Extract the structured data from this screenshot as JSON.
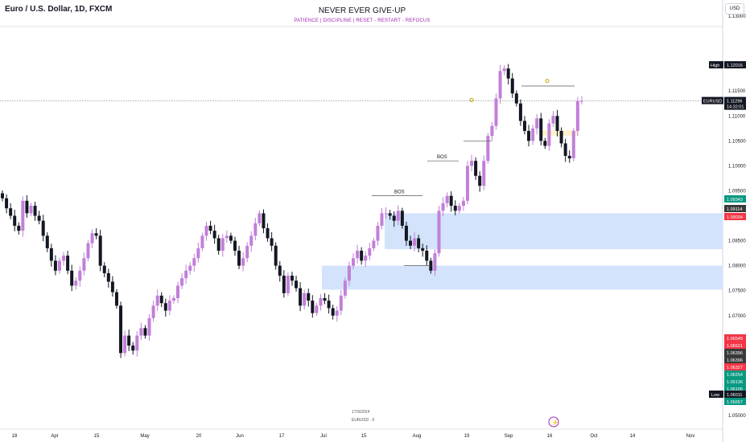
{
  "header": {
    "symbol_title": "Euro / U.S. Dollar, 1D, FXCM",
    "title": "NEVER EVER GIVE-UP",
    "subtitle": "PATIENCE  |  DISCIPLINE  |  RESET - RESTART - REFOCUS",
    "currency": "USD"
  },
  "watermark": {
    "date": "17/9/2024",
    "symbol": "EURUSD · 0"
  },
  "colors": {
    "bull": "#c27fd9",
    "bear": "#131722",
    "zone": "#d3e3fb",
    "ob": "#fdf3cf",
    "green": "#089981",
    "red": "#f23645"
  },
  "chart_data": {
    "type": "candlestick",
    "ylim": [
      1.045,
      1.135
    ],
    "y_ticks": [
      "1.05000",
      "1.07000",
      "1.07500",
      "1.08000",
      "1.08500",
      "1.09500",
      "1.10000",
      "1.10500",
      "1.11000",
      "1.11500",
      "1.12000",
      "1.13000"
    ],
    "x_ticks": [
      "18",
      "Apr",
      "15",
      "May",
      "20",
      "Jun",
      "17",
      "Jul",
      "15",
      "Aug",
      "19",
      "Sep",
      "16",
      "Oct",
      "14",
      "Nov"
    ],
    "closes": [
      1.0935,
      1.0915,
      1.09,
      1.088,
      1.087,
      1.093,
      1.0905,
      1.092,
      1.09,
      1.089,
      1.086,
      1.0835,
      1.081,
      1.079,
      1.081,
      1.082,
      1.079,
      1.076,
      1.077,
      1.079,
      1.0815,
      1.0845,
      1.0865,
      1.086,
      1.08,
      1.0785,
      1.0768,
      1.0747,
      1.072,
      1.0625,
      1.066,
      1.064,
      1.063,
      1.066,
      1.0675,
      1.066,
      1.0695,
      1.072,
      1.074,
      1.0725,
      1.071,
      1.073,
      1.0735,
      1.076,
      1.0775,
      1.079,
      1.08,
      1.0815,
      1.0835,
      1.086,
      1.088,
      1.087,
      1.0855,
      1.083,
      1.0855,
      1.086,
      1.085,
      1.083,
      1.08,
      1.0815,
      1.084,
      1.086,
      1.0885,
      1.0905,
      1.0875,
      1.0855,
      1.084,
      1.08,
      1.078,
      1.0745,
      1.078,
      1.077,
      1.0755,
      1.072,
      1.0745,
      1.073,
      1.0705,
      1.072,
      1.0735,
      1.073,
      1.0715,
      1.07,
      1.071,
      1.074,
      1.077,
      1.08,
      1.0815,
      1.083,
      1.081,
      1.082,
      1.0835,
      1.085,
      1.088,
      1.0905,
      1.0905,
      1.09,
      1.089,
      1.091,
      1.088,
      1.085,
      1.084,
      1.0855,
      1.0835,
      1.083,
      1.081,
      1.079,
      1.0825,
      1.091,
      1.0925,
      1.094,
      1.092,
      1.091,
      1.092,
      1.093,
      1.1,
      1.101,
      1.098,
      1.096,
      1.101,
      1.106,
      1.108,
      1.1135,
      1.119,
      1.1195,
      1.1175,
      1.1145,
      1.1125,
      1.109,
      1.107,
      1.105,
      1.1075,
      1.1095,
      1.105,
      1.104,
      1.1085,
      1.11,
      1.107,
      1.1045,
      1.102,
      1.1015,
      1.107,
      1.113,
      1.113
    ]
  },
  "price_axis": {
    "high_label": "High",
    "high_value": "1.12016",
    "low_label": "Low",
    "low_value": "1.06011",
    "current_symbol": "EURUSD",
    "current_value": "1.11296",
    "countdown": "14:32:01",
    "levels": [
      {
        "value": "1.09343",
        "color": "#089981"
      },
      {
        "value": "1.09114",
        "color": "#3a3a3a"
      },
      {
        "value": "1.09034",
        "color": "#f23645"
      },
      {
        "value": "1.06549",
        "color": "#f23645"
      },
      {
        "value": "1.06521",
        "color": "#f23645"
      },
      {
        "value": "1.06396",
        "color": "#3a3a3a"
      },
      {
        "value": "1.06396",
        "color": "#3a3a3a"
      },
      {
        "value": "1.06327",
        "color": "#f23645"
      },
      {
        "value": "1.06254",
        "color": "#089981"
      },
      {
        "value": "1.06136",
        "color": "#089981"
      },
      {
        "value": "1.06105",
        "color": "#089981"
      },
      {
        "value": "1.05657",
        "color": "#089981"
      }
    ]
  },
  "annotations": {
    "bos1": "BOS",
    "bos2": "BOS"
  }
}
